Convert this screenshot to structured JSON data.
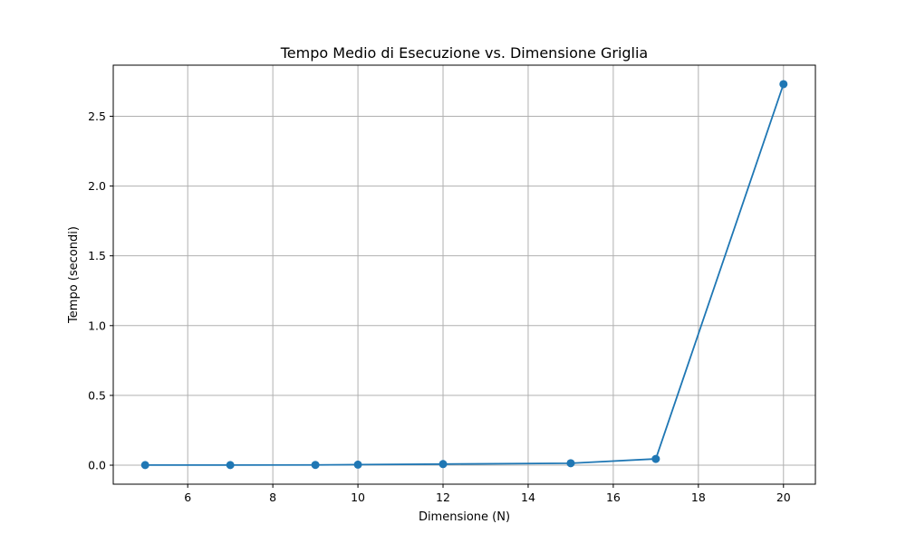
{
  "chart_data": {
    "type": "line",
    "title": "Tempo Medio di Esecuzione vs. Dimensione Griglia",
    "xlabel": "Dimensione (N)",
    "ylabel": "Tempo (secondi)",
    "x": [
      5,
      7,
      9,
      10,
      12,
      15,
      17,
      20
    ],
    "series": [
      {
        "values": [
          0.001,
          0.001,
          0.002,
          0.004,
          0.008,
          0.014,
          0.045,
          2.73
        ],
        "color": "#1f77b4",
        "marker": "circle"
      }
    ],
    "xlim": [
      4.25,
      20.75
    ],
    "ylim": [
      -0.136,
      2.866
    ],
    "xticks": [
      6,
      8,
      10,
      12,
      14,
      16,
      18,
      20
    ],
    "xtick_labels": [
      "6",
      "8",
      "10",
      "12",
      "14",
      "16",
      "18",
      "20"
    ],
    "yticks": [
      0.0,
      0.5,
      1.0,
      1.5,
      2.0,
      2.5
    ],
    "ytick_labels": [
      "0.0",
      "0.5",
      "1.0",
      "1.5",
      "2.0",
      "2.5"
    ],
    "grid": true,
    "legend": "none"
  }
}
